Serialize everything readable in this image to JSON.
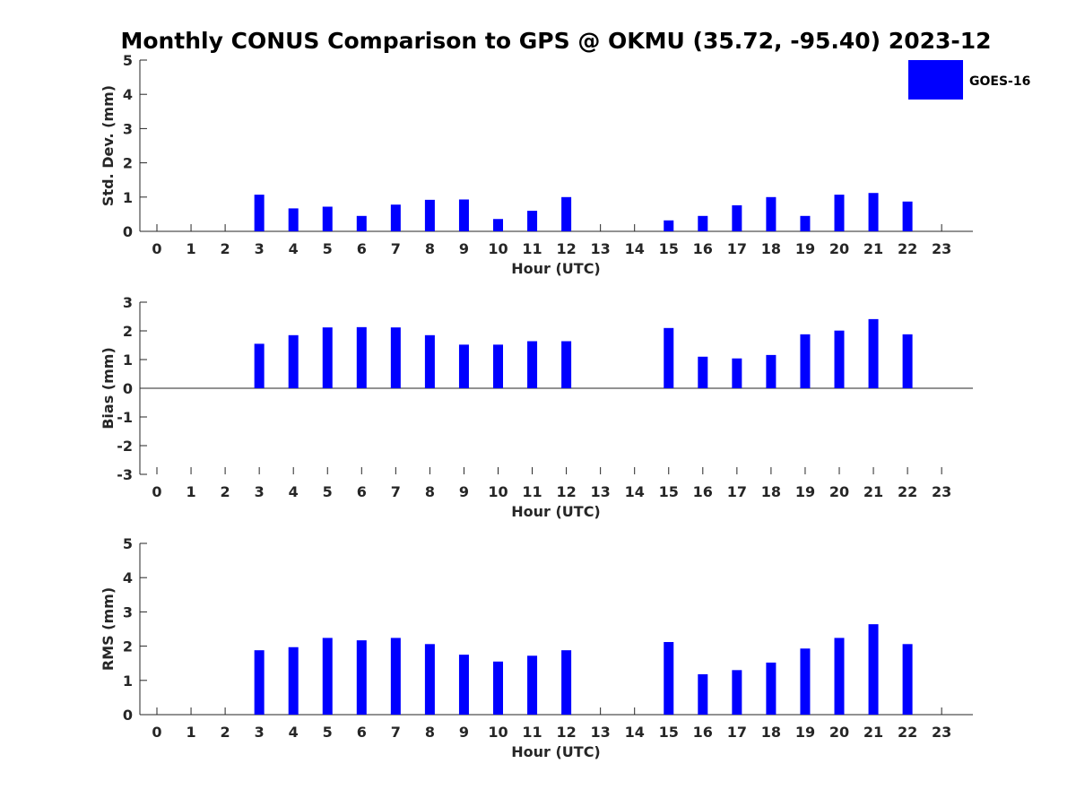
{
  "title": "Monthly CONUS Comparison to GPS @ OKMU (35.72, -95.40) 2023-12",
  "legend": {
    "label": "GOES-16",
    "color": "#0000ff"
  },
  "chart_data": [
    {
      "type": "bar",
      "ylabel": "Std. Dev. (mm)",
      "xlabel": "Hour (UTC)",
      "ylim": [
        0,
        5
      ],
      "yticks": [
        "0",
        "1",
        "2",
        "3",
        "4",
        "5"
      ],
      "categories": [
        "0",
        "1",
        "2",
        "3",
        "4",
        "5",
        "6",
        "7",
        "8",
        "9",
        "10",
        "11",
        "12",
        "13",
        "14",
        "15",
        "16",
        "17",
        "18",
        "19",
        "20",
        "21",
        "22",
        "23"
      ],
      "series": [
        {
          "name": "GOES-16",
          "color": "#0000ff",
          "values": [
            null,
            null,
            null,
            1.07,
            0.67,
            0.72,
            0.45,
            0.78,
            0.92,
            0.93,
            0.36,
            0.6,
            1.0,
            null,
            null,
            0.32,
            0.45,
            0.76,
            1.0,
            0.45,
            1.07,
            1.12,
            0.87,
            null
          ]
        }
      ]
    },
    {
      "type": "bar",
      "ylabel": "Bias (mm)",
      "xlabel": "Hour (UTC)",
      "ylim": [
        -3,
        3
      ],
      "yticks": [
        "-3",
        "-2",
        "-1",
        "0",
        "1",
        "2",
        "3"
      ],
      "categories": [
        "0",
        "1",
        "2",
        "3",
        "4",
        "5",
        "6",
        "7",
        "8",
        "9",
        "10",
        "11",
        "12",
        "13",
        "14",
        "15",
        "16",
        "17",
        "18",
        "19",
        "20",
        "21",
        "22",
        "23"
      ],
      "series": [
        {
          "name": "GOES-16",
          "color": "#0000ff",
          "values": [
            null,
            null,
            null,
            1.55,
            1.85,
            2.12,
            2.13,
            2.12,
            1.85,
            1.52,
            1.52,
            1.64,
            1.64,
            null,
            null,
            2.1,
            1.1,
            1.04,
            1.16,
            1.88,
            2.01,
            2.41,
            1.88,
            null
          ]
        }
      ]
    },
    {
      "type": "bar",
      "ylabel": "RMS (mm)",
      "xlabel": "Hour (UTC)",
      "ylim": [
        0,
        5
      ],
      "yticks": [
        "0",
        "1",
        "2",
        "3",
        "4",
        "5"
      ],
      "categories": [
        "0",
        "1",
        "2",
        "3",
        "4",
        "5",
        "6",
        "7",
        "8",
        "9",
        "10",
        "11",
        "12",
        "13",
        "14",
        "15",
        "16",
        "17",
        "18",
        "19",
        "20",
        "21",
        "22",
        "23"
      ],
      "series": [
        {
          "name": "GOES-16",
          "color": "#0000ff",
          "values": [
            null,
            null,
            null,
            1.88,
            1.97,
            2.24,
            2.17,
            2.24,
            2.06,
            1.75,
            1.55,
            1.72,
            1.88,
            null,
            null,
            2.12,
            1.18,
            1.3,
            1.52,
            1.93,
            2.24,
            2.64,
            2.06,
            null
          ]
        }
      ]
    }
  ]
}
